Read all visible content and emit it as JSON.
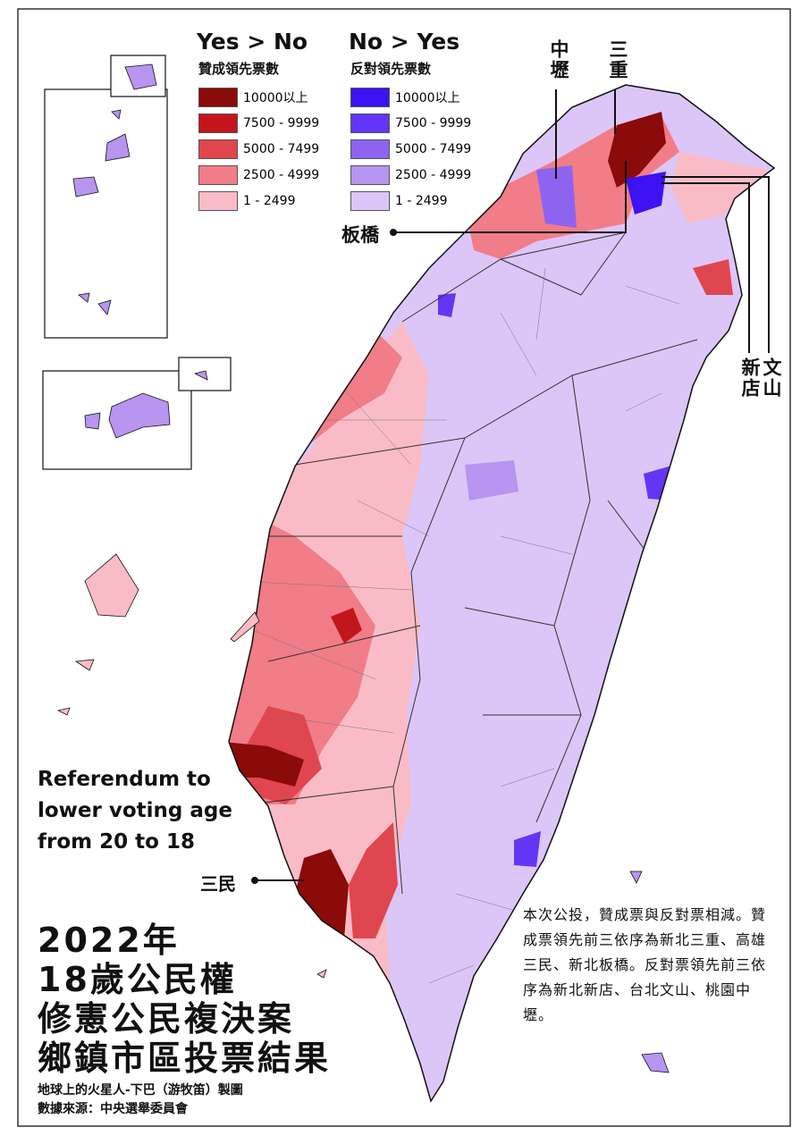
{
  "legend": {
    "yes": {
      "title": "Yes > No",
      "subtitle": "贊成領先票數",
      "items": [
        {
          "label": "10000以上",
          "color": "#8b0a0a"
        },
        {
          "label": "7500 - 9999",
          "color": "#c3161c"
        },
        {
          "label": "5000 - 7499",
          "color": "#e0464f"
        },
        {
          "label": "2500 - 4999",
          "color": "#f07d88"
        },
        {
          "label": "1 - 2499",
          "color": "#f9bcc6"
        }
      ]
    },
    "no": {
      "title": "No > Yes",
      "subtitle": "反對領先票數",
      "items": [
        {
          "label": "10000以上",
          "color": "#3c12f2"
        },
        {
          "label": "7500 - 9999",
          "color": "#6236f4"
        },
        {
          "label": "5000 - 7499",
          "color": "#8d64f0"
        },
        {
          "label": "2500 - 4999",
          "color": "#b795f0"
        },
        {
          "label": "1 - 2499",
          "color": "#dcc6f7"
        }
      ]
    }
  },
  "places": [
    "中壢",
    "三重",
    "板橋",
    "新店",
    "文山",
    "三民"
  ],
  "caption": [
    "Referendum to",
    "lower voting age",
    "from 20 to 18"
  ],
  "title": [
    "2022年",
    "18歲公民權",
    "修憲公民複決案",
    "鄉鎮市區投票結果"
  ],
  "credits": [
    "地球上的火星人-下巴（游牧笛）製圖",
    "數據來源：中央選舉委員會"
  ],
  "note": "本次公投，贊成票與反對票相減。贊成票領先前三依序為新北三重、高雄三民、新北板橋。反對票領先前三依序為新北新店、台北文山、桃園中壢。"
}
